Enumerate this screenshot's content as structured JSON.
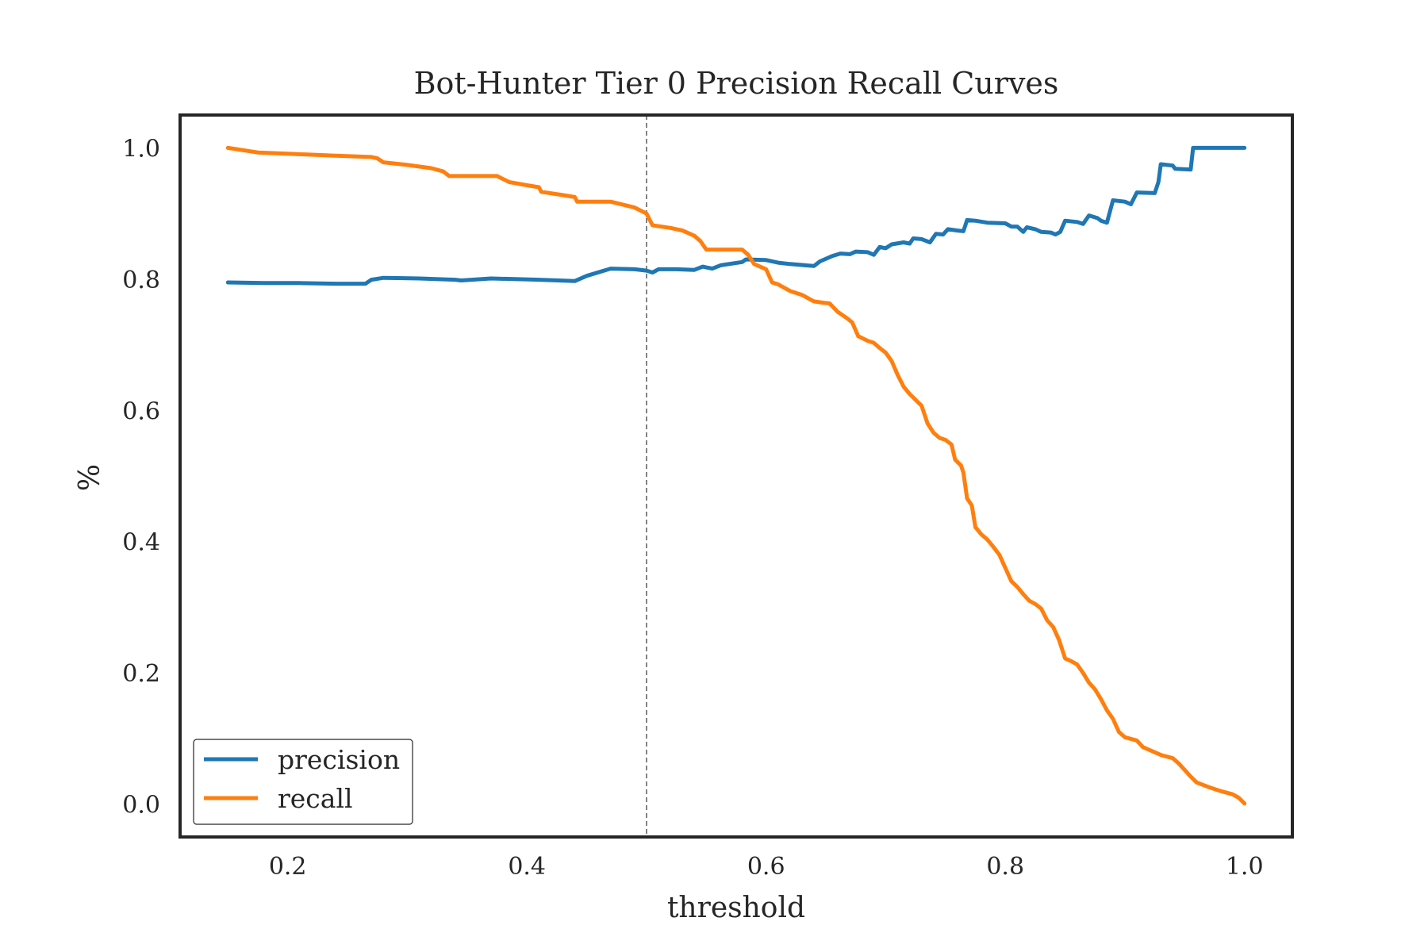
{
  "chart_data": {
    "type": "line",
    "title": "Bot-Hunter Tier 0 Precision Recall Curves",
    "xlabel": "threshold",
    "ylabel": "%",
    "xlim": [
      0.11,
      1.04
    ],
    "ylim": [
      -0.05,
      1.05
    ],
    "xticks": [
      0.2,
      0.4,
      0.6,
      0.8,
      1.0
    ],
    "xtick_labels": [
      "0.2",
      "0.4",
      "0.6",
      "0.8",
      "1.0"
    ],
    "yticks": [
      0.0,
      0.2,
      0.4,
      0.6,
      0.8,
      1.0
    ],
    "ytick_labels": [
      "0.0",
      "0.2",
      "0.4",
      "0.6",
      "0.8",
      "1.0"
    ],
    "grid": false,
    "legend_position": "lower-left",
    "vline": {
      "x": 0.5,
      "style": "dashed",
      "color": "#666666"
    },
    "series": [
      {
        "name": "precision",
        "color": "#1f77b4",
        "points": [
          [
            0.15,
            0.795
          ],
          [
            0.18,
            0.794
          ],
          [
            0.21,
            0.794
          ],
          [
            0.24,
            0.793
          ],
          [
            0.265,
            0.793
          ],
          [
            0.27,
            0.799
          ],
          [
            0.28,
            0.802
          ],
          [
            0.31,
            0.801
          ],
          [
            0.34,
            0.799
          ],
          [
            0.345,
            0.798
          ],
          [
            0.37,
            0.801
          ],
          [
            0.39,
            0.8
          ],
          [
            0.41,
            0.799
          ],
          [
            0.44,
            0.797
          ],
          [
            0.45,
            0.805
          ],
          [
            0.47,
            0.816
          ],
          [
            0.49,
            0.815
          ],
          [
            0.5,
            0.813
          ],
          [
            0.505,
            0.81
          ],
          [
            0.51,
            0.815
          ],
          [
            0.525,
            0.815
          ],
          [
            0.54,
            0.814
          ],
          [
            0.547,
            0.819
          ],
          [
            0.555,
            0.816
          ],
          [
            0.562,
            0.821
          ],
          [
            0.58,
            0.826
          ],
          [
            0.583,
            0.83
          ],
          [
            0.6,
            0.829
          ],
          [
            0.61,
            0.825
          ],
          [
            0.62,
            0.823
          ],
          [
            0.64,
            0.82
          ],
          [
            0.645,
            0.827
          ],
          [
            0.655,
            0.835
          ],
          [
            0.662,
            0.839
          ],
          [
            0.67,
            0.838
          ],
          [
            0.675,
            0.842
          ],
          [
            0.685,
            0.841
          ],
          [
            0.69,
            0.837
          ],
          [
            0.695,
            0.849
          ],
          [
            0.7,
            0.847
          ],
          [
            0.705,
            0.853
          ],
          [
            0.715,
            0.856
          ],
          [
            0.72,
            0.854
          ],
          [
            0.723,
            0.862
          ],
          [
            0.73,
            0.861
          ],
          [
            0.737,
            0.856
          ],
          [
            0.742,
            0.869
          ],
          [
            0.748,
            0.868
          ],
          [
            0.752,
            0.876
          ],
          [
            0.76,
            0.874
          ],
          [
            0.765,
            0.873
          ],
          [
            0.768,
            0.89
          ],
          [
            0.775,
            0.889
          ],
          [
            0.785,
            0.886
          ],
          [
            0.8,
            0.885
          ],
          [
            0.805,
            0.88
          ],
          [
            0.81,
            0.88
          ],
          [
            0.815,
            0.872
          ],
          [
            0.818,
            0.879
          ],
          [
            0.825,
            0.876
          ],
          [
            0.83,
            0.872
          ],
          [
            0.838,
            0.871
          ],
          [
            0.842,
            0.868
          ],
          [
            0.846,
            0.872
          ],
          [
            0.85,
            0.889
          ],
          [
            0.86,
            0.887
          ],
          [
            0.865,
            0.884
          ],
          [
            0.87,
            0.897
          ],
          [
            0.877,
            0.893
          ],
          [
            0.88,
            0.889
          ],
          [
            0.885,
            0.886
          ],
          [
            0.89,
            0.92
          ],
          [
            0.9,
            0.918
          ],
          [
            0.905,
            0.914
          ],
          [
            0.91,
            0.932
          ],
          [
            0.925,
            0.931
          ],
          [
            0.928,
            0.948
          ],
          [
            0.93,
            0.975
          ],
          [
            0.94,
            0.973
          ],
          [
            0.942,
            0.968
          ],
          [
            0.955,
            0.967
          ],
          [
            0.957,
            1.0
          ],
          [
            1.0,
            1.0
          ]
        ]
      },
      {
        "name": "recall",
        "color": "#ff7f0e",
        "points": [
          [
            0.15,
            1.0
          ],
          [
            0.175,
            0.993
          ],
          [
            0.2,
            0.991
          ],
          [
            0.24,
            0.988
          ],
          [
            0.27,
            0.986
          ],
          [
            0.275,
            0.984
          ],
          [
            0.28,
            0.978
          ],
          [
            0.3,
            0.974
          ],
          [
            0.32,
            0.969
          ],
          [
            0.33,
            0.964
          ],
          [
            0.335,
            0.957
          ],
          [
            0.36,
            0.957
          ],
          [
            0.375,
            0.957
          ],
          [
            0.385,
            0.948
          ],
          [
            0.4,
            0.943
          ],
          [
            0.41,
            0.94
          ],
          [
            0.412,
            0.933
          ],
          [
            0.43,
            0.928
          ],
          [
            0.44,
            0.925
          ],
          [
            0.442,
            0.918
          ],
          [
            0.45,
            0.918
          ],
          [
            0.47,
            0.918
          ],
          [
            0.49,
            0.909
          ],
          [
            0.5,
            0.9
          ],
          [
            0.505,
            0.882
          ],
          [
            0.52,
            0.878
          ],
          [
            0.53,
            0.874
          ],
          [
            0.54,
            0.866
          ],
          [
            0.545,
            0.858
          ],
          [
            0.55,
            0.845
          ],
          [
            0.57,
            0.845
          ],
          [
            0.58,
            0.845
          ],
          [
            0.585,
            0.837
          ],
          [
            0.59,
            0.823
          ],
          [
            0.6,
            0.815
          ],
          [
            0.605,
            0.795
          ],
          [
            0.61,
            0.792
          ],
          [
            0.62,
            0.782
          ],
          [
            0.63,
            0.776
          ],
          [
            0.64,
            0.766
          ],
          [
            0.648,
            0.764
          ],
          [
            0.653,
            0.763
          ],
          [
            0.66,
            0.75
          ],
          [
            0.668,
            0.74
          ],
          [
            0.672,
            0.734
          ],
          [
            0.677,
            0.713
          ],
          [
            0.685,
            0.706
          ],
          [
            0.69,
            0.703
          ],
          [
            0.695,
            0.695
          ],
          [
            0.7,
            0.688
          ],
          [
            0.705,
            0.675
          ],
          [
            0.71,
            0.654
          ],
          [
            0.715,
            0.636
          ],
          [
            0.72,
            0.625
          ],
          [
            0.73,
            0.607
          ],
          [
            0.735,
            0.58
          ],
          [
            0.74,
            0.566
          ],
          [
            0.745,
            0.558
          ],
          [
            0.75,
            0.555
          ],
          [
            0.755,
            0.548
          ],
          [
            0.758,
            0.525
          ],
          [
            0.763,
            0.516
          ],
          [
            0.765,
            0.505
          ],
          [
            0.768,
            0.466
          ],
          [
            0.772,
            0.455
          ],
          [
            0.775,
            0.422
          ],
          [
            0.78,
            0.411
          ],
          [
            0.785,
            0.403
          ],
          [
            0.79,
            0.392
          ],
          [
            0.795,
            0.38
          ],
          [
            0.8,
            0.36
          ],
          [
            0.805,
            0.34
          ],
          [
            0.81,
            0.331
          ],
          [
            0.815,
            0.32
          ],
          [
            0.82,
            0.31
          ],
          [
            0.825,
            0.305
          ],
          [
            0.83,
            0.298
          ],
          [
            0.835,
            0.28
          ],
          [
            0.84,
            0.27
          ],
          [
            0.845,
            0.25
          ],
          [
            0.85,
            0.222
          ],
          [
            0.855,
            0.218
          ],
          [
            0.86,
            0.213
          ],
          [
            0.865,
            0.2
          ],
          [
            0.87,
            0.185
          ],
          [
            0.875,
            0.175
          ],
          [
            0.88,
            0.16
          ],
          [
            0.885,
            0.143
          ],
          [
            0.89,
            0.13
          ],
          [
            0.895,
            0.11
          ],
          [
            0.9,
            0.102
          ],
          [
            0.91,
            0.097
          ],
          [
            0.915,
            0.087
          ],
          [
            0.92,
            0.083
          ],
          [
            0.93,
            0.075
          ],
          [
            0.94,
            0.07
          ],
          [
            0.945,
            0.062
          ],
          [
            0.95,
            0.052
          ],
          [
            0.955,
            0.042
          ],
          [
            0.96,
            0.033
          ],
          [
            0.97,
            0.026
          ],
          [
            0.98,
            0.02
          ],
          [
            0.99,
            0.015
          ],
          [
            0.995,
            0.01
          ],
          [
            1.0,
            0.001
          ]
        ]
      }
    ]
  }
}
